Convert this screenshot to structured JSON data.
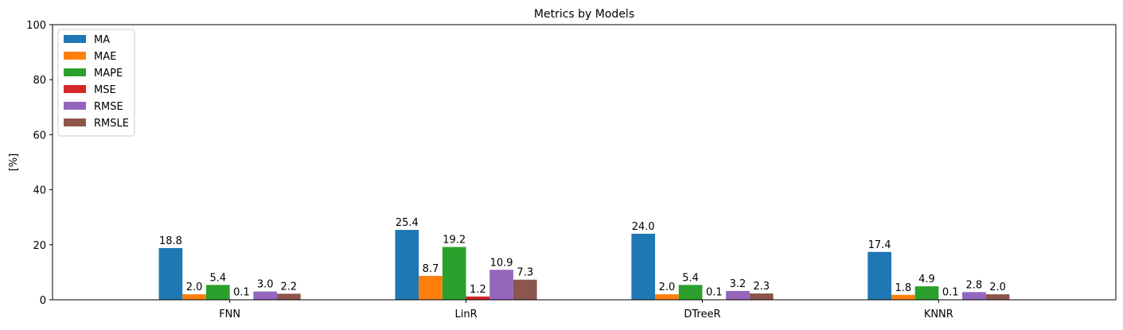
{
  "chart_data": {
    "type": "bar",
    "title": "Metrics by Models",
    "xlabel": "",
    "ylabel": "[%]",
    "ylim": [
      0,
      100
    ],
    "yticks": [
      0,
      20,
      40,
      60,
      80,
      100
    ],
    "grid": false,
    "legend_position": "upper-left",
    "categories": [
      "FNN",
      "LinR",
      "DTreeR",
      "KNNR"
    ],
    "series": [
      {
        "name": "MA",
        "color": "#1f77b4",
        "values": [
          18.8,
          25.4,
          24.0,
          17.4
        ],
        "labels": [
          "18.8",
          "25.4",
          "24.0",
          "17.4"
        ]
      },
      {
        "name": "MAE",
        "color": "#ff7f0e",
        "values": [
          2.0,
          8.7,
          2.0,
          1.8
        ],
        "labels": [
          "2.0",
          "8.7",
          "2.0",
          "1.8"
        ]
      },
      {
        "name": "MAPE",
        "color": "#2ca02c",
        "values": [
          5.4,
          19.2,
          5.4,
          4.9
        ],
        "labels": [
          "5.4",
          "19.2",
          "5.4",
          "4.9"
        ]
      },
      {
        "name": "MSE",
        "color": "#d62728",
        "values": [
          0.1,
          1.2,
          0.1,
          0.1
        ],
        "labels": [
          "0.1",
          "1.2",
          "0.1",
          "0.1"
        ]
      },
      {
        "name": "RMSE",
        "color": "#9467bd",
        "values": [
          3.0,
          10.9,
          3.2,
          2.8
        ],
        "labels": [
          "3.0",
          "10.9",
          "3.2",
          "2.8"
        ]
      },
      {
        "name": "RMSLE",
        "color": "#8c564b",
        "values": [
          2.2,
          7.3,
          2.3,
          2.0
        ],
        "labels": [
          "2.2",
          "7.3",
          "2.3",
          "2.0"
        ]
      }
    ]
  }
}
